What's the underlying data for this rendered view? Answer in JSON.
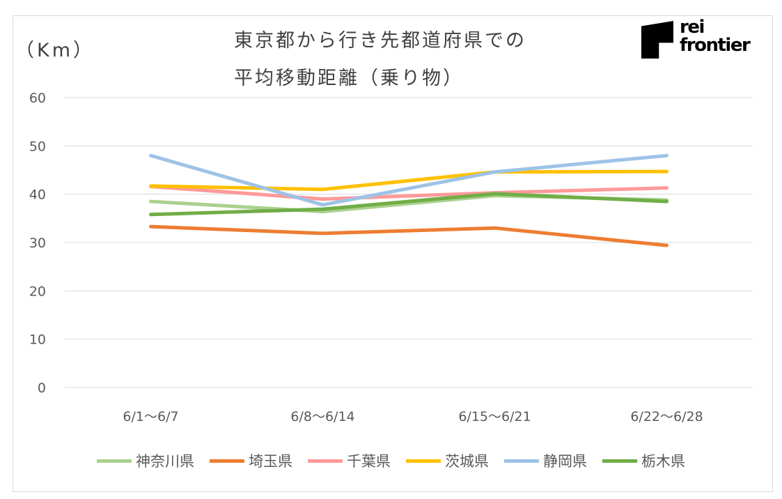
{
  "logo": {
    "line1": "rei",
    "line2": "frontier"
  },
  "chart_data": {
    "type": "line",
    "title_line1": "東京都から行き先都道府県での",
    "title_line2": "平均移動距離（乗り物）",
    "ylabel": "（Km）",
    "xlabel": "",
    "ylim": [
      0,
      60
    ],
    "yticks": [
      "0",
      "10",
      "20",
      "30",
      "40",
      "50",
      "60"
    ],
    "grid": true,
    "legend_position": "bottom",
    "categories": [
      "6/1～6/7",
      "6/8～6/14",
      "6/15～6/21",
      "6/22～6/28"
    ],
    "series": [
      {
        "name": "神奈川県",
        "color": "#a9d18e",
        "values": [
          38.5,
          36.4,
          39.7,
          38.8
        ]
      },
      {
        "name": "埼玉県",
        "color": "#ed7d31",
        "values": [
          33.3,
          31.9,
          33.0,
          29.4
        ]
      },
      {
        "name": "千葉県",
        "color": "#ff9999",
        "values": [
          41.6,
          39.0,
          40.3,
          41.3
        ]
      },
      {
        "name": "茨城県",
        "color": "#ffc000",
        "values": [
          41.7,
          41.0,
          44.6,
          44.7
        ]
      },
      {
        "name": "静岡県",
        "color": "#9dc3e6",
        "values": [
          48.0,
          37.8,
          44.6,
          48.0
        ]
      },
      {
        "name": "栃木県",
        "color": "#70ad47",
        "values": [
          35.8,
          36.9,
          40.1,
          38.5
        ]
      }
    ]
  }
}
